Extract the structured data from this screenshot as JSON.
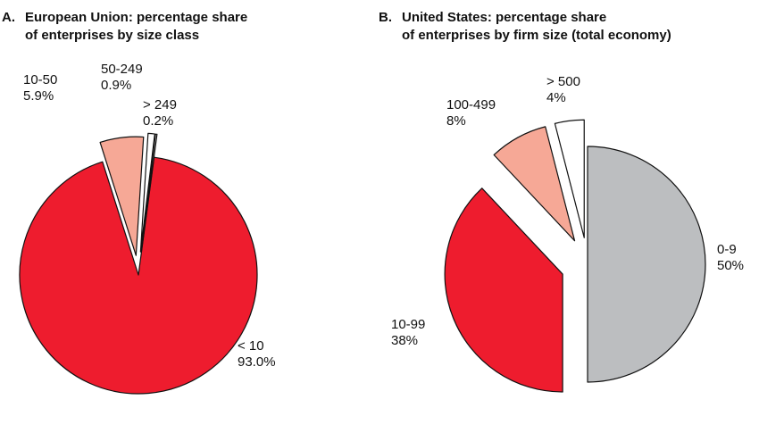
{
  "chart_data": [
    {
      "type": "pie",
      "panel_letter": "A.",
      "title_line1": "European Union: percentage share",
      "title_line2": "of enterprises by size class",
      "unit": "%",
      "categories": [
        "< 10",
        "10-50",
        "50-249",
        "> 249"
      ],
      "values": [
        93.0,
        5.9,
        0.9,
        0.2
      ],
      "value_labels": [
        "93.0%",
        "5.9%",
        "0.9%",
        "0.2%"
      ],
      "colors": [
        "#ee1c2e",
        "#f6a896",
        "#ffffff",
        "#ffffff"
      ],
      "exploded": [
        false,
        true,
        true,
        true
      ]
    },
    {
      "type": "pie",
      "panel_letter": "B.",
      "title_line1": "United States: percentage share",
      "title_line2": "of enterprises by firm size (total economy)",
      "unit": "%",
      "categories": [
        "0-9",
        "10-99",
        "100-499",
        "> 500"
      ],
      "values": [
        50,
        38,
        8,
        4
      ],
      "value_labels": [
        "50%",
        "38%",
        "8%",
        "4%"
      ],
      "colors": [
        "#bcbec0",
        "#ee1c2e",
        "#f6a896",
        "#ffffff"
      ],
      "exploded": [
        false,
        true,
        true,
        true
      ]
    }
  ]
}
